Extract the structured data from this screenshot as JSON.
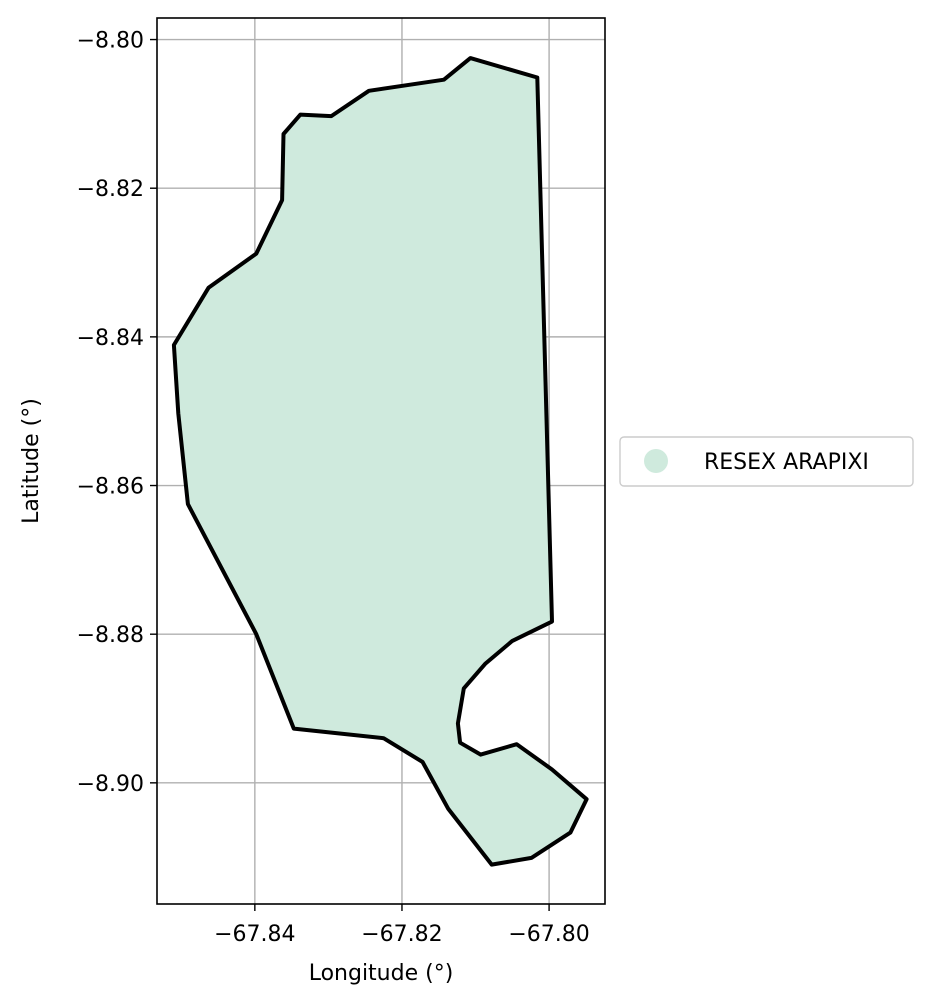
{
  "chart_data": {
    "type": "map",
    "xlabel": "Longitude (°)",
    "ylabel": "Latitude (°)",
    "xlim": [
      -67.8533,
      -67.7924
    ],
    "ylim": [
      -8.9163,
      -8.7971
    ],
    "x_ticks": [
      {
        "value": -67.84,
        "label": "−67.84"
      },
      {
        "value": -67.82,
        "label": "−67.82"
      },
      {
        "value": -67.8,
        "label": "−67.80"
      }
    ],
    "y_ticks": [
      {
        "value": -8.8,
        "label": "−8.80"
      },
      {
        "value": -8.82,
        "label": "−8.82"
      },
      {
        "value": -8.84,
        "label": "−8.84"
      },
      {
        "value": -8.86,
        "label": "−8.86"
      },
      {
        "value": -8.88,
        "label": "−8.88"
      },
      {
        "value": -8.9,
        "label": "−8.90"
      }
    ],
    "grid": true,
    "legend_position": "center-right",
    "series": [
      {
        "name": "RESEX ARAPIXI",
        "fill_color": "#cfeadd",
        "edge_color": "#000000",
        "polygon": [
          [
            -67.8107,
            -8.8025
          ],
          [
            -67.8016,
            -8.8051
          ],
          [
            -67.7996,
            -8.8783
          ],
          [
            -67.805,
            -8.8809
          ],
          [
            -67.8087,
            -8.884
          ],
          [
            -67.8116,
            -8.8873
          ],
          [
            -67.8124,
            -8.892
          ],
          [
            -67.8121,
            -8.8946
          ],
          [
            -67.8093,
            -8.8962
          ],
          [
            -67.8044,
            -8.8948
          ],
          [
            -67.7996,
            -8.8982
          ],
          [
            -67.7949,
            -8.9022
          ],
          [
            -67.7971,
            -8.9067
          ],
          [
            -67.8024,
            -8.9101
          ],
          [
            -67.8078,
            -8.911
          ],
          [
            -67.8137,
            -8.9035
          ],
          [
            -67.8172,
            -8.8972
          ],
          [
            -67.8225,
            -8.894
          ],
          [
            -67.8347,
            -8.8927
          ],
          [
            -67.8398,
            -8.88
          ],
          [
            -67.8491,
            -8.8625
          ],
          [
            -67.8504,
            -8.8503
          ],
          [
            -67.851,
            -8.8411
          ],
          [
            -67.8463,
            -8.8334
          ],
          [
            -67.8398,
            -8.8288
          ],
          [
            -67.8363,
            -8.8216
          ],
          [
            -67.8361,
            -8.8127
          ],
          [
            -67.8338,
            -8.8101
          ],
          [
            -67.8296,
            -8.8103
          ],
          [
            -67.8245,
            -8.8069
          ],
          [
            -67.8143,
            -8.8054
          ],
          [
            -67.8107,
            -8.8025
          ]
        ]
      }
    ]
  }
}
